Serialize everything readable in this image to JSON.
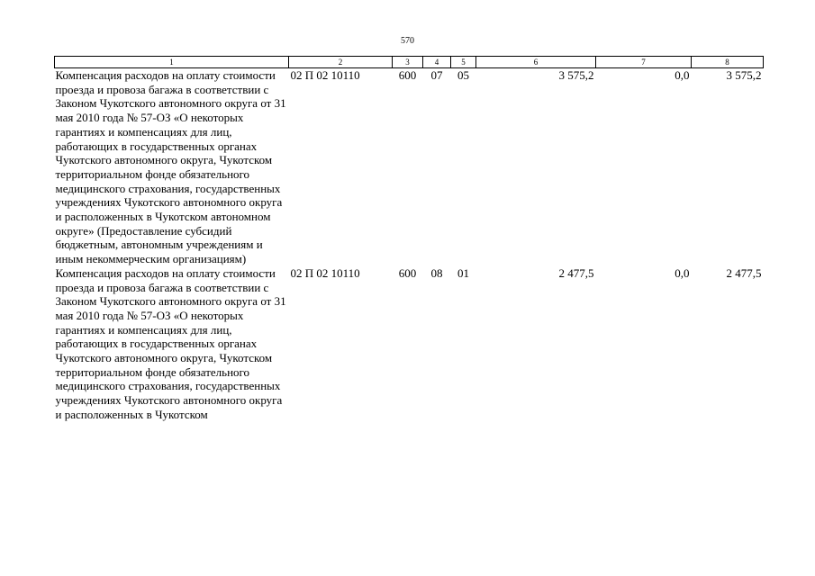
{
  "page_number": "570",
  "headers": [
    "1",
    "2",
    "3",
    "4",
    "5",
    "6",
    "7",
    "8"
  ],
  "rows": [
    {
      "description": "Компенсация расходов на оплату стоимости проезда и провоза багажа в соответствии с Законом Чукотского автономного округа от 31 мая 2010 года № 57-ОЗ «О некоторых гарантиях и компенсациях для лиц, работающих в государственных органах Чукотского автономного округа, Чукотском территориальном фонде обязательного медицинского страхования, государственных учреждениях Чукотского автономного округа и расположенных в Чукотском автономном округе» (Предоставление субсидий бюджетным, автономным учреждениям и иным некоммерческим организациям)",
      "code": "02 П 02 10110",
      "vr": "600",
      "rz": "07",
      "pr": "05",
      "total": "3 575,2",
      "col7": "0,0",
      "col8": "3 575,2"
    },
    {
      "description": "Компенсация расходов на оплату стоимости проезда и провоза багажа в соответствии с Законом Чукотского автономного округа от 31 мая 2010 года № 57-ОЗ «О некоторых гарантиях и компенсациях для лиц, работающих в государственных органах Чукотского автономного округа, Чукотском территориальном фонде обязательного медицинского страхования, государственных учреждениях Чукотского автономного округа и расположенных в Чукотском",
      "code": "02 П 02 10110",
      "vr": "600",
      "rz": "08",
      "pr": "01",
      "total": "2 477,5",
      "col7": "0,0",
      "col8": "2 477,5"
    }
  ]
}
